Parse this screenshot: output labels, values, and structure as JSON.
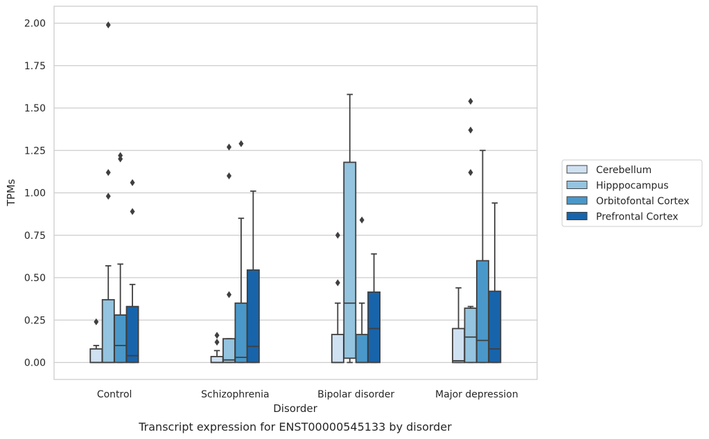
{
  "chart_data": {
    "type": "box",
    "title": "",
    "caption": "Transcript expression for ENST00000545133 by disorder",
    "xlabel": "Disorder",
    "ylabel": "TPMs",
    "ylim": [
      -0.1,
      2.1
    ],
    "yticks": [
      "0.00",
      "0.25",
      "0.50",
      "0.75",
      "1.00",
      "1.25",
      "1.50",
      "1.75",
      "2.00"
    ],
    "ytick_values": [
      0,
      0.25,
      0.5,
      0.75,
      1.0,
      1.25,
      1.5,
      1.75,
      2.0
    ],
    "categories": [
      "Control",
      "Schizophrenia",
      "Bipolar disorder",
      "Major depression"
    ],
    "grid": "horizontal",
    "legend_position": "right, outside plot",
    "series": [
      {
        "name": "Cerebellum",
        "color": "#d0e1f2",
        "boxes": [
          {
            "whislo": 0.0,
            "q1": 0.0,
            "med": 0.0,
            "q3": 0.08,
            "whishi": 0.1,
            "fliers": [
              0.24
            ]
          },
          {
            "whislo": 0.0,
            "q1": 0.0,
            "med": 0.0,
            "q3": 0.035,
            "whishi": 0.07,
            "fliers": [
              0.12,
              0.16
            ]
          },
          {
            "whislo": 0.0,
            "q1": 0.0,
            "med": 0.0,
            "q3": 0.165,
            "whishi": 0.35,
            "fliers": [
              0.47,
              0.75
            ]
          },
          {
            "whislo": 0.0,
            "q1": 0.0,
            "med": 0.01,
            "q3": 0.2,
            "whishi": 0.44,
            "fliers": []
          }
        ]
      },
      {
        "name": "Hipppocampus",
        "color": "#94c4df",
        "boxes": [
          {
            "whislo": 0.0,
            "q1": 0.0,
            "med": 0.0,
            "q3": 0.37,
            "whishi": 0.57,
            "fliers": [
              0.98,
              1.12,
              1.99
            ]
          },
          {
            "whislo": 0.0,
            "q1": 0.0,
            "med": 0.015,
            "q3": 0.14,
            "whishi": 0.14,
            "fliers": [
              0.4,
              1.1,
              1.27
            ]
          },
          {
            "whislo": 0.0,
            "q1": 0.025,
            "med": 0.35,
            "q3": 1.18,
            "whishi": 1.58,
            "fliers": []
          },
          {
            "whislo": 0.0,
            "q1": 0.0,
            "med": 0.15,
            "q3": 0.32,
            "whishi": 0.33,
            "fliers": [
              1.12,
              1.37,
              1.54
            ]
          }
        ]
      },
      {
        "name": "Orbitofontal Cortex",
        "color": "#4a98c9",
        "boxes": [
          {
            "whislo": 0.0,
            "q1": 0.0,
            "med": 0.1,
            "q3": 0.28,
            "whishi": 0.58,
            "fliers": [
              1.2,
              1.22
            ]
          },
          {
            "whislo": 0.0,
            "q1": 0.0,
            "med": 0.03,
            "q3": 0.35,
            "whishi": 0.85,
            "fliers": [
              1.29
            ]
          },
          {
            "whislo": 0.0,
            "q1": 0.0,
            "med": 0.0,
            "q3": 0.165,
            "whishi": 0.35,
            "fliers": [
              0.84
            ]
          },
          {
            "whislo": 0.0,
            "q1": 0.0,
            "med": 0.13,
            "q3": 0.6,
            "whishi": 1.25,
            "fliers": []
          }
        ]
      },
      {
        "name": "Prefrontal Cortex",
        "color": "#1764ab",
        "boxes": [
          {
            "whislo": 0.0,
            "q1": 0.0,
            "med": 0.04,
            "q3": 0.33,
            "whishi": 0.46,
            "fliers": [
              0.89,
              1.06
            ]
          },
          {
            "whislo": 0.0,
            "q1": 0.0,
            "med": 0.095,
            "q3": 0.545,
            "whishi": 1.01,
            "fliers": []
          },
          {
            "whislo": 0.0,
            "q1": 0.0,
            "med": 0.2,
            "q3": 0.415,
            "whishi": 0.64,
            "fliers": []
          },
          {
            "whislo": 0.0,
            "q1": 0.0,
            "med": 0.08,
            "q3": 0.42,
            "whishi": 0.94,
            "fliers": []
          }
        ]
      }
    ]
  }
}
